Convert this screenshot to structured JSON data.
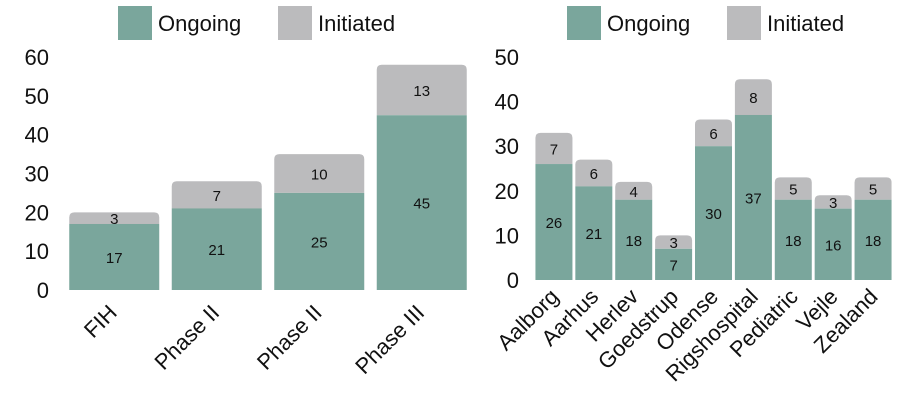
{
  "colors": {
    "ongoing": "#7aa69c",
    "initiated": "#bbbbbd"
  },
  "chart_data": [
    {
      "type": "bar",
      "stacked": true,
      "legend_position": "top",
      "grid": false,
      "categories": [
        "FIH",
        "Phase II",
        "Phase II",
        "Phase III"
      ],
      "series": [
        {
          "name": "Ongoing",
          "values": [
            17,
            21,
            25,
            45
          ]
        },
        {
          "name": "Initiated",
          "values": [
            3,
            7,
            10,
            13
          ]
        }
      ],
      "ylim": [
        0,
        60
      ],
      "yticks": [
        "0",
        "10",
        "20",
        "30",
        "40",
        "50",
        "60"
      ]
    },
    {
      "type": "bar",
      "stacked": true,
      "legend_position": "top",
      "grid": false,
      "categories": [
        "Aalborg",
        "Aarhus",
        "Herlev",
        "Goedstrup",
        "Odense",
        "Rigshospital",
        "Pediatric",
        "Vejle",
        "Zealand"
      ],
      "series": [
        {
          "name": "Ongoing",
          "values": [
            26,
            21,
            18,
            7,
            30,
            37,
            18,
            16,
            18
          ]
        },
        {
          "name": "Initiated",
          "values": [
            7,
            6,
            4,
            3,
            6,
            8,
            5,
            3,
            5
          ]
        }
      ],
      "ylim": [
        0,
        50
      ],
      "yticks": [
        "0",
        "10",
        "20",
        "30",
        "40",
        "50"
      ]
    }
  ]
}
